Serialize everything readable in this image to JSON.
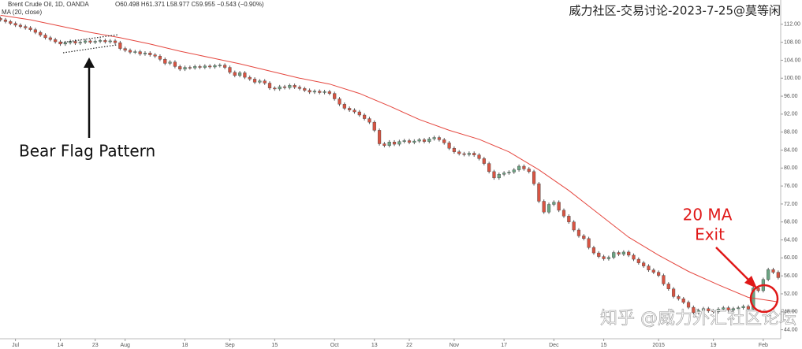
{
  "chart_data": {
    "type": "candlestick",
    "title": "Brent Crude Oil, 1D, OANDA",
    "quote": "O60.498 H61.371 L58.977 C59.955 −0.543 (−0.90%)",
    "annotations": [
      "Bear Flag Pattern",
      "20 MA",
      "Exit"
    ],
    "watermarks": [
      "威力社区-交易讨论-2023-7-25@莫等闲",
      "知乎 @威力外汇社区论坛"
    ],
    "colors": {
      "up": "#6ba583",
      "down": "#d75442"
    },
    "grid": false,
    "xlim": [
      -3.1,
      153.5
    ],
    "ylim": [
      42,
      116
    ],
    "xticks": [
      {
        "value": 0,
        "label": "Jul"
      },
      {
        "value": 9,
        "label": "14"
      },
      {
        "value": 16,
        "label": "23"
      },
      {
        "value": 22,
        "label": "Aug"
      },
      {
        "value": 34,
        "label": "18"
      },
      {
        "value": 43,
        "label": "Sep"
      },
      {
        "value": 52,
        "label": "15"
      },
      {
        "value": 64,
        "label": "Oct"
      },
      {
        "value": 72,
        "label": "13"
      },
      {
        "value": 79,
        "label": "22"
      },
      {
        "value": 88,
        "label": "Nov"
      },
      {
        "value": 98,
        "label": "17"
      },
      {
        "value": 108,
        "label": "Dec"
      },
      {
        "value": 118,
        "label": "15"
      },
      {
        "value": 129,
        "label": "2015"
      },
      {
        "value": 140,
        "label": "19"
      },
      {
        "value": 150,
        "label": "Feb"
      }
    ],
    "yticks": [
      {
        "value": 44,
        "label": "44.00"
      },
      {
        "value": 48,
        "label": "48.00"
      },
      {
        "value": 52,
        "label": "52.00"
      },
      {
        "value": 56,
        "label": "56.00"
      },
      {
        "value": 60,
        "label": "60.00"
      },
      {
        "value": 64,
        "label": "64.00"
      },
      {
        "value": 68,
        "label": "68.00"
      },
      {
        "value": 72,
        "label": "72.00"
      },
      {
        "value": 76,
        "label": "76.00"
      },
      {
        "value": 80,
        "label": "80.00"
      },
      {
        "value": 84,
        "label": "84.00"
      },
      {
        "value": 88,
        "label": "88.00"
      },
      {
        "value": 92,
        "label": "92.00"
      },
      {
        "value": 96,
        "label": "96.00"
      },
      {
        "value": 100,
        "label": "100.00"
      },
      {
        "value": 104,
        "label": "104.00"
      },
      {
        "value": 108,
        "label": "108.00"
      },
      {
        "value": 112,
        "label": "112.00"
      }
    ],
    "x": [
      -3,
      -2,
      -1,
      0,
      1,
      2,
      3,
      4,
      5,
      6,
      7,
      8,
      9,
      10,
      11,
      12,
      13,
      14,
      15,
      16,
      17,
      18,
      19,
      20,
      21,
      22,
      23,
      24,
      25,
      26,
      27,
      28,
      29,
      30,
      31,
      32,
      33,
      34,
      35,
      36,
      37,
      38,
      39,
      40,
      41,
      42,
      43,
      44,
      45,
      46,
      47,
      48,
      49,
      50,
      51,
      52,
      53,
      54,
      55,
      56,
      57,
      58,
      59,
      60,
      61,
      62,
      63,
      64,
      65,
      66,
      67,
      68,
      69,
      70,
      71,
      72,
      73,
      74,
      75,
      76,
      77,
      78,
      79,
      80,
      81,
      82,
      83,
      84,
      85,
      86,
      87,
      88,
      89,
      90,
      91,
      92,
      93,
      94,
      95,
      96,
      97,
      98,
      99,
      100,
      101,
      102,
      103,
      104,
      105,
      106,
      107,
      108,
      109,
      110,
      111,
      112,
      113,
      114,
      115,
      116,
      117,
      118,
      119,
      120,
      121,
      122,
      123,
      124,
      125,
      126,
      127,
      128,
      129,
      130,
      131,
      132,
      133,
      134,
      135,
      136,
      137,
      138,
      139,
      140,
      141,
      142,
      143,
      144,
      145,
      146,
      147,
      148,
      149,
      150,
      151,
      152,
      153
    ],
    "open": [
      113.3,
      113.0,
      112.6,
      112.2,
      111.8,
      111.5,
      111.2,
      110.8,
      110.2,
      109.6,
      109.0,
      108.6,
      108.1,
      107.6,
      107.9,
      108.2,
      107.8,
      108.0,
      108.3,
      108.0,
      108.2,
      108.4,
      108.1,
      108.3,
      107.9,
      106.6,
      106.2,
      105.8,
      105.9,
      105.4,
      105.6,
      105.2,
      104.9,
      104.2,
      103.3,
      103.6,
      102.6,
      102.0,
      102.4,
      102.3,
      102.6,
      102.4,
      102.7,
      102.5,
      102.8,
      102.9,
      102.4,
      101.3,
      100.6,
      101.2,
      100.2,
      99.8,
      99.1,
      99.4,
      98.9,
      97.8,
      97.6,
      98.1,
      97.9,
      98.4,
      98.0,
      97.7,
      97.3,
      96.9,
      97.1,
      96.8,
      97.0,
      96.6,
      95.4,
      94.2,
      93.3,
      92.9,
      92.5,
      91.8,
      91.0,
      90.2,
      88.4,
      85.4,
      85.0,
      85.8,
      85.3,
      85.9,
      86.1,
      85.7,
      86.0,
      86.3,
      85.9,
      86.5,
      86.8,
      86.3,
      85.6,
      84.4,
      83.6,
      83.2,
      83.0,
      83.3,
      82.9,
      82.1,
      81.0,
      79.2,
      77.8,
      78.6,
      78.9,
      79.1,
      79.6,
      80.4,
      79.8,
      79.2,
      76.5,
      72.6,
      70.2,
      71.9,
      72.4,
      70.6,
      69.3,
      68.0,
      66.2,
      64.9,
      64.3,
      62.3,
      61.1,
      60.3,
      59.8,
      60.1,
      61.2,
      60.8,
      61.3,
      60.6,
      59.7,
      58.9,
      58.2,
      57.3,
      56.8,
      56.1,
      54.2,
      53.1,
      51.4,
      50.9,
      50.1,
      49.0,
      47.8,
      48.3,
      48.7,
      48.2,
      48.0,
      48.6,
      48.9,
      48.4,
      48.7,
      48.9,
      49.2,
      48.6,
      53.3,
      52.7,
      55.2,
      57.4,
      56.8
    ],
    "high": [
      113.7,
      113.4,
      113.0,
      112.6,
      112.2,
      111.9,
      111.6,
      111.2,
      110.6,
      110.0,
      109.4,
      109.0,
      108.5,
      108.3,
      108.6,
      108.6,
      108.4,
      108.7,
      108.7,
      108.6,
      108.8,
      108.8,
      108.7,
      108.7,
      108.3,
      107.0,
      106.6,
      106.3,
      106.3,
      106.0,
      106.0,
      105.6,
      105.3,
      104.6,
      104.0,
      104.0,
      103.0,
      102.8,
      102.8,
      103.0,
      103.0,
      103.1,
      103.1,
      103.2,
      103.3,
      103.3,
      102.8,
      101.7,
      101.6,
      101.6,
      100.6,
      100.2,
      99.8,
      99.8,
      99.3,
      98.2,
      98.5,
      98.5,
      98.8,
      98.8,
      98.4,
      98.1,
      97.7,
      97.5,
      97.5,
      97.4,
      97.4,
      97.0,
      95.8,
      94.6,
      93.7,
      93.3,
      92.9,
      92.2,
      91.4,
      90.6,
      88.8,
      85.8,
      86.2,
      86.2,
      86.3,
      86.5,
      86.5,
      86.4,
      86.7,
      86.7,
      86.9,
      87.2,
      87.2,
      86.7,
      86.0,
      84.8,
      84.0,
      83.6,
      83.7,
      83.7,
      83.3,
      82.5,
      81.4,
      79.6,
      79.0,
      79.3,
      79.5,
      80.0,
      80.8,
      80.8,
      80.2,
      79.6,
      76.9,
      73.0,
      72.3,
      72.8,
      72.8,
      71.0,
      69.7,
      68.4,
      66.6,
      65.3,
      64.7,
      62.7,
      61.5,
      60.7,
      60.5,
      61.6,
      61.6,
      61.7,
      61.7,
      61.0,
      60.1,
      59.3,
      58.6,
      57.7,
      57.2,
      56.5,
      54.6,
      53.5,
      51.8,
      51.3,
      50.5,
      49.4,
      48.7,
      49.1,
      49.1,
      48.6,
      49.0,
      49.3,
      49.3,
      49.1,
      49.3,
      49.6,
      49.6,
      53.7,
      53.7,
      55.6,
      57.8,
      57.8,
      57.2
    ],
    "low": [
      112.6,
      112.2,
      111.8,
      111.4,
      111.1,
      110.8,
      110.4,
      109.8,
      109.2,
      108.6,
      108.2,
      107.7,
      107.2,
      107.2,
      107.5,
      107.4,
      107.4,
      107.6,
      107.6,
      107.6,
      107.8,
      107.7,
      107.7,
      107.5,
      106.2,
      105.8,
      105.4,
      105.4,
      105.0,
      105.0,
      104.8,
      104.5,
      103.8,
      102.9,
      102.9,
      102.2,
      101.6,
      101.6,
      101.9,
      101.9,
      102.0,
      102.0,
      102.1,
      102.1,
      102.4,
      102.0,
      100.9,
      100.2,
      100.2,
      99.8,
      99.4,
      98.7,
      98.7,
      98.5,
      97.4,
      97.2,
      97.2,
      97.5,
      97.5,
      97.6,
      97.3,
      96.9,
      96.5,
      96.5,
      96.4,
      96.4,
      96.2,
      95.0,
      93.8,
      92.9,
      92.5,
      92.1,
      91.4,
      90.6,
      89.8,
      88.0,
      85.0,
      84.6,
      84.6,
      84.9,
      84.9,
      85.5,
      85.3,
      85.3,
      85.6,
      85.5,
      85.5,
      86.1,
      85.9,
      85.2,
      84.0,
      83.2,
      82.8,
      82.6,
      82.6,
      82.5,
      81.7,
      80.6,
      78.8,
      77.4,
      77.4,
      78.2,
      78.5,
      78.7,
      79.2,
      79.4,
      78.8,
      76.1,
      72.2,
      69.8,
      69.8,
      71.5,
      70.2,
      68.9,
      67.6,
      65.8,
      64.5,
      63.9,
      61.9,
      60.7,
      59.9,
      59.4,
      59.4,
      59.7,
      60.4,
      60.4,
      60.2,
      59.3,
      58.5,
      57.8,
      56.9,
      56.4,
      55.7,
      53.8,
      52.7,
      51.0,
      50.5,
      49.7,
      48.6,
      47.4,
      47.4,
      47.9,
      47.8,
      47.6,
      47.6,
      48.2,
      48.0,
      48.0,
      48.3,
      48.5,
      48.2,
      48.2,
      52.3,
      52.3,
      54.8,
      56.4,
      55.2
    ],
    "close": [
      113.0,
      112.6,
      112.2,
      111.8,
      111.5,
      111.2,
      110.8,
      110.2,
      109.6,
      109.0,
      108.6,
      108.1,
      107.6,
      107.9,
      108.2,
      107.8,
      108.0,
      108.3,
      108.0,
      108.2,
      108.4,
      108.1,
      108.3,
      107.9,
      106.6,
      106.2,
      105.8,
      105.9,
      105.4,
      105.6,
      105.2,
      104.9,
      104.2,
      103.3,
      103.6,
      102.6,
      102.0,
      102.4,
      102.3,
      102.6,
      102.4,
      102.7,
      102.5,
      102.8,
      102.9,
      102.4,
      101.3,
      100.6,
      101.2,
      100.2,
      99.8,
      99.1,
      99.4,
      98.9,
      97.8,
      97.6,
      98.1,
      97.9,
      98.4,
      98.0,
      97.7,
      97.3,
      96.9,
      97.1,
      96.8,
      97.0,
      96.6,
      95.4,
      94.2,
      93.3,
      92.9,
      92.5,
      91.8,
      91.0,
      90.2,
      88.4,
      85.4,
      85.0,
      85.8,
      85.3,
      85.9,
      86.1,
      85.7,
      86.0,
      86.3,
      85.9,
      86.5,
      86.8,
      86.3,
      85.6,
      84.4,
      83.6,
      83.2,
      83.0,
      83.3,
      82.9,
      82.1,
      81.0,
      79.2,
      77.8,
      78.6,
      78.9,
      79.1,
      79.6,
      80.4,
      79.8,
      79.2,
      76.5,
      72.6,
      70.2,
      71.9,
      72.4,
      70.6,
      69.3,
      68.0,
      66.2,
      64.9,
      64.3,
      62.3,
      61.1,
      60.3,
      59.8,
      60.1,
      61.2,
      60.8,
      61.3,
      60.6,
      59.7,
      58.9,
      58.2,
      57.3,
      56.8,
      56.1,
      54.2,
      53.1,
      51.4,
      50.9,
      50.1,
      49.0,
      47.8,
      48.3,
      48.7,
      48.2,
      48.0,
      48.6,
      48.9,
      48.4,
      48.7,
      48.9,
      49.2,
      48.6,
      53.3,
      52.7,
      55.2,
      57.4,
      56.8,
      55.6
    ],
    "ma": {
      "name": "MA (20, close)",
      "color": "#e5473f",
      "x": [
        -3,
        3,
        9,
        15,
        21,
        27,
        33,
        39,
        45,
        51,
        57,
        63,
        69,
        75,
        81,
        87,
        93,
        99,
        105,
        111,
        117,
        123,
        129,
        135,
        141,
        147,
        153
      ],
      "values": [
        114.0,
        113.0,
        111.6,
        110.2,
        109.0,
        107.6,
        106.0,
        104.6,
        103.2,
        101.6,
        100.0,
        98.7,
        96.6,
        93.8,
        90.8,
        88.4,
        86.4,
        83.6,
        79.6,
        75.0,
        69.8,
        64.6,
        60.6,
        57.0,
        54.0,
        51.2,
        50.2
      ]
    }
  }
}
